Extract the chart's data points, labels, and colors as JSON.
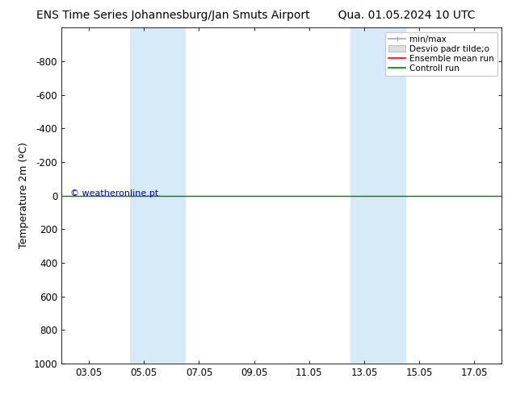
{
  "title_left": "ENS Time Series Johannesburg/Jan Smuts Airport",
  "title_right": "Qua. 01.05.2024 10 UTC",
  "ylabel": "Temperature 2m (ºC)",
  "xlabel_ticks": [
    "03.05",
    "05.05",
    "07.05",
    "09.05",
    "11.05",
    "13.05",
    "15.05",
    "17.05"
  ],
  "x_tick_positions": [
    1,
    3,
    5,
    7,
    9,
    11,
    13,
    15
  ],
  "xlim": [
    0,
    16
  ],
  "ylim": [
    1000,
    -1000
  ],
  "yticks": [
    -800,
    -600,
    -400,
    -200,
    0,
    200,
    400,
    600,
    800,
    1000
  ],
  "background_color": "#ffffff",
  "plot_bg_color": "#ffffff",
  "shaded_bands": [
    {
      "xmin": 2.5,
      "xmax": 4.5
    },
    {
      "xmin": 10.5,
      "xmax": 12.5
    }
  ],
  "shaded_color": "#d6eaf8",
  "green_line_y": 0,
  "control_run_color": "#008000",
  "ensemble_mean_color": "#ff0000",
  "minmax_color": "#aaaaaa",
  "stddev_color": "#dddddd",
  "watermark": "© weatheronline.pt",
  "watermark_color": "#0000cc",
  "legend_labels": [
    "min/max",
    "Desvio padr tilde;o",
    "Ensemble mean run",
    "Controll run"
  ],
  "title_fontsize": 10,
  "axis_fontsize": 9,
  "tick_fontsize": 8.5,
  "legend_fontsize": 7.5
}
